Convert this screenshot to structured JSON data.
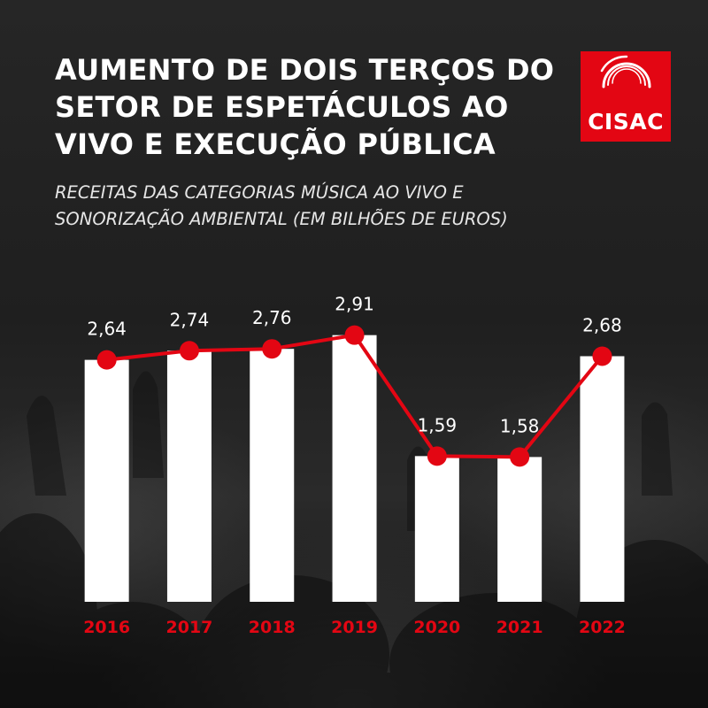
{
  "header": {
    "title_lines": [
      "AUMENTO DE DOIS TERÇOS DO",
      "SETOR DE ESPETÁCULOS AO",
      "VIVO E EXECUÇÃO PÚBLICA"
    ],
    "subtitle_lines": [
      "RECEITAS DAS CATEGORIAS MÚSICA AO VIVO E",
      "SONORIZAÇÃO AMBIENTAL (EM BILHÕES DE EUROS)"
    ],
    "logo_text": "CISAC"
  },
  "colors": {
    "accent": "#e30613",
    "bar": "#ffffff",
    "background": "#1f1f1f",
    "text": "#ffffff"
  },
  "chart_data": {
    "type": "bar",
    "title": "AUMENTO DE DOIS TERÇOS DO SETOR DE ESPETÁCULOS AO VIVO E EXECUÇÃO PÚBLICA",
    "subtitle": "RECEITAS DAS CATEGORIAS MÚSICA AO VIVO E SONORIZAÇÃO AMBIENTAL (EM BILHÕES DE EUROS)",
    "categories": [
      "2016",
      "2017",
      "2018",
      "2019",
      "2020",
      "2021",
      "2022"
    ],
    "values": [
      2.64,
      2.74,
      2.76,
      2.91,
      1.59,
      1.58,
      2.68
    ],
    "value_labels": [
      "2,64",
      "2,74",
      "2,76",
      "2,91",
      "1,59",
      "1,58",
      "2,68"
    ],
    "overlay": "line",
    "ylim": [
      0,
      3.1
    ],
    "grid": false,
    "legend": "none",
    "xlabel": "",
    "ylabel": ""
  }
}
